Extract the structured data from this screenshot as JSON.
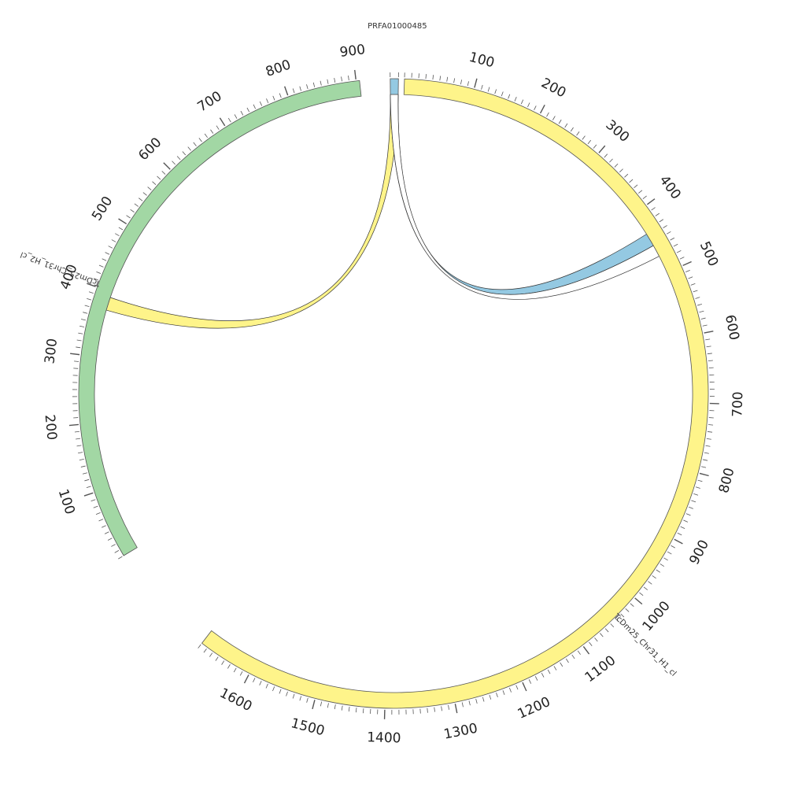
{
  "sequences": [
    {
      "id": "PRFA01000485",
      "label": "PRFA01000485",
      "color": "#94c9e2",
      "length": 12
    },
    {
      "id": "H1",
      "label": "TcDm25_Chr31_H1_cl",
      "color": "#fef48a",
      "length": 1680,
      "tick_labels": [
        "100",
        "200",
        "300",
        "400",
        "500",
        "600",
        "700",
        "800",
        "900",
        "1000",
        "1100",
        "1200",
        "1300",
        "1400",
        "1500",
        "1600"
      ]
    },
    {
      "id": "H2",
      "label": "TcDm25_Chr31_H2_cl",
      "color": "#a2d7a4",
      "length": 905,
      "tick_labels": [
        "100",
        "200",
        "300",
        "400",
        "500",
        "600",
        "700",
        "800",
        "900"
      ]
    }
  ],
  "links": [
    {
      "from": "PRFA01000485",
      "from_range": [
        0,
        12
      ],
      "to": "TcDm25_Chr31_H2_cl",
      "to_range": [
        372,
        392
      ],
      "color": "#fef48a"
    },
    {
      "from": "PRFA01000485",
      "from_range": [
        0,
        12
      ],
      "to": "TcDm25_Chr31_H1_cl",
      "to_range": [
        435,
        455
      ],
      "color": "#94c9e2"
    },
    {
      "from": "PRFA01000485",
      "from_range": [
        0,
        12
      ],
      "to": "TcDm25_Chr31_H1_cl",
      "to_range": [
        455,
        473
      ],
      "color": "#ffffff"
    }
  ]
}
